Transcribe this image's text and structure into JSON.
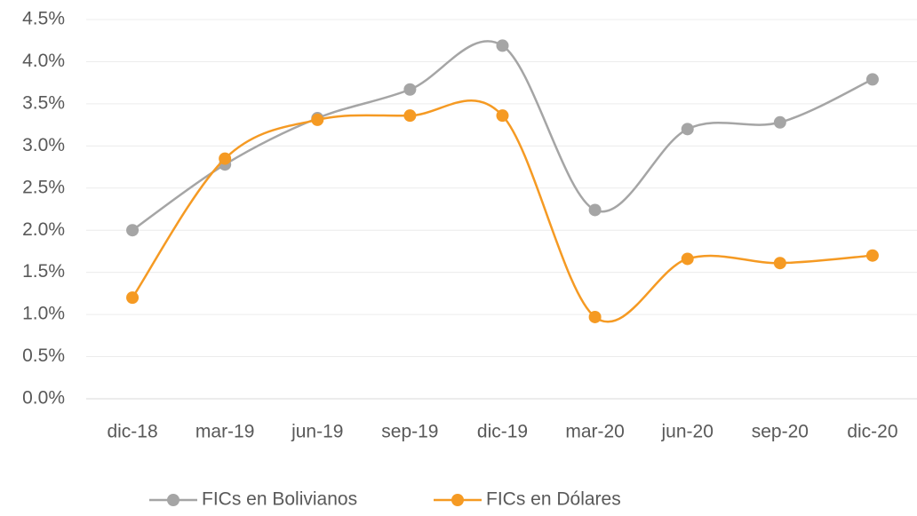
{
  "chart_data": {
    "type": "line",
    "categories": [
      "dic-18",
      "mar-19",
      "jun-19",
      "sep-19",
      "dic-19",
      "mar-20",
      "jun-20",
      "sep-20",
      "dic-20"
    ],
    "series": [
      {
        "name": "FICs en Bolivianos",
        "color": "#a5a5a5",
        "values": [
          2.0,
          2.78,
          3.33,
          3.67,
          4.19,
          2.24,
          3.2,
          3.28,
          3.79
        ]
      },
      {
        "name": "FICs en Dólares",
        "color": "#f59a23",
        "values": [
          1.2,
          2.85,
          3.31,
          3.36,
          3.36,
          0.97,
          1.66,
          1.61,
          1.7
        ]
      }
    ],
    "ylim": [
      0,
      4.5
    ],
    "yticks": [
      {
        "value": 0,
        "label": "0.0%"
      },
      {
        "value": 0.5,
        "label": "0.5%"
      },
      {
        "value": 1,
        "label": "1.0%"
      },
      {
        "value": 1.5,
        "label": "1.5%"
      },
      {
        "value": 2,
        "label": "2.0%"
      },
      {
        "value": 2.5,
        "label": "2.5%"
      },
      {
        "value": 3,
        "label": "3.0%"
      },
      {
        "value": 3.5,
        "label": "3.5%"
      },
      {
        "value": 4,
        "label": "4.0%"
      },
      {
        "value": 4.5,
        "label": "4.5%"
      }
    ],
    "grid": true,
    "smooth": true,
    "legend": "bottom"
  }
}
